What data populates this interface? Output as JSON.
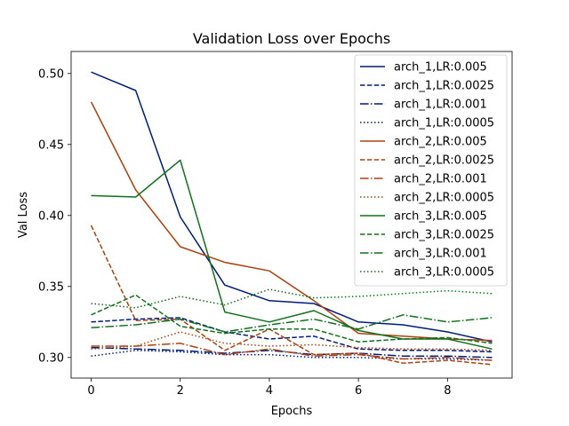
{
  "chart_data": {
    "type": "line",
    "title": "Validation Loss over Epochs",
    "xlabel": "Epochs",
    "ylabel": "Val Loss",
    "xlim": [
      -0.45,
      9.45
    ],
    "ylim": [
      0.2855,
      0.5155
    ],
    "xticks": [
      0,
      2,
      4,
      6,
      8
    ],
    "yticks": [
      0.3,
      0.35,
      0.4,
      0.45,
      0.5
    ],
    "ytick_labels": [
      "0.30",
      "0.35",
      "0.40",
      "0.45",
      "0.50"
    ],
    "grid": false,
    "legend_position": "top-right",
    "x": [
      0,
      1,
      2,
      3,
      4,
      5,
      6,
      7,
      8,
      9
    ],
    "series": [
      {
        "name": "arch_1,LR:0.005",
        "color": "#001c7f",
        "linestyle": "solid",
        "values": [
          0.501,
          0.488,
          0.399,
          0.351,
          0.34,
          0.338,
          0.325,
          0.323,
          0.318,
          0.311
        ]
      },
      {
        "name": "arch_1,LR:0.0025",
        "color": "#001c7f",
        "linestyle": "dashed",
        "values": [
          0.325,
          0.327,
          0.328,
          0.318,
          0.313,
          0.315,
          0.306,
          0.305,
          0.305,
          0.304
        ]
      },
      {
        "name": "arch_1,LR:0.001",
        "color": "#001c7f",
        "linestyle": "dashdot",
        "values": [
          0.307,
          0.306,
          0.305,
          0.303,
          0.305,
          0.302,
          0.303,
          0.301,
          0.301,
          0.3
        ]
      },
      {
        "name": "arch_1,LR:0.0005",
        "color": "#001c7f",
        "linestyle": "dotted",
        "values": [
          0.301,
          0.305,
          0.304,
          0.302,
          0.302,
          0.3,
          0.3,
          0.299,
          0.299,
          0.298
        ]
      },
      {
        "name": "arch_2,LR:0.005",
        "color": "#b1400d",
        "linestyle": "solid",
        "values": [
          0.48,
          0.418,
          0.378,
          0.367,
          0.361,
          0.34,
          0.317,
          0.315,
          0.313,
          0.312
        ]
      },
      {
        "name": "arch_2,LR:0.0025",
        "color": "#b1400d",
        "linestyle": "dashed",
        "values": [
          0.393,
          0.326,
          0.327,
          0.305,
          0.32,
          0.302,
          0.303,
          0.296,
          0.298,
          0.295
        ]
      },
      {
        "name": "arch_2,LR:0.001",
        "color": "#b1400d",
        "linestyle": "dashdot",
        "values": [
          0.308,
          0.308,
          0.31,
          0.302,
          0.306,
          0.301,
          0.302,
          0.299,
          0.3,
          0.298
        ]
      },
      {
        "name": "arch_2,LR:0.0005",
        "color": "#b1400d",
        "linestyle": "dotted",
        "values": [
          0.306,
          0.308,
          0.318,
          0.31,
          0.308,
          0.309,
          0.307,
          0.306,
          0.306,
          0.305
        ]
      },
      {
        "name": "arch_3,LR:0.005",
        "color": "#12711c",
        "linestyle": "solid",
        "values": [
          0.414,
          0.413,
          0.439,
          0.332,
          0.325,
          0.333,
          0.319,
          0.313,
          0.313,
          0.306
        ]
      },
      {
        "name": "arch_3,LR:0.0025",
        "color": "#12711c",
        "linestyle": "dashed",
        "values": [
          0.33,
          0.344,
          0.322,
          0.317,
          0.32,
          0.32,
          0.311,
          0.313,
          0.314,
          0.31
        ]
      },
      {
        "name": "arch_3,LR:0.001",
        "color": "#12711c",
        "linestyle": "dashdot",
        "values": [
          0.321,
          0.323,
          0.327,
          0.318,
          0.323,
          0.327,
          0.32,
          0.33,
          0.325,
          0.328
        ]
      },
      {
        "name": "arch_3,LR:0.0005",
        "color": "#12711c",
        "linestyle": "dotted",
        "values": [
          0.338,
          0.335,
          0.343,
          0.337,
          0.348,
          0.342,
          0.343,
          0.345,
          0.347,
          0.345
        ]
      }
    ]
  }
}
